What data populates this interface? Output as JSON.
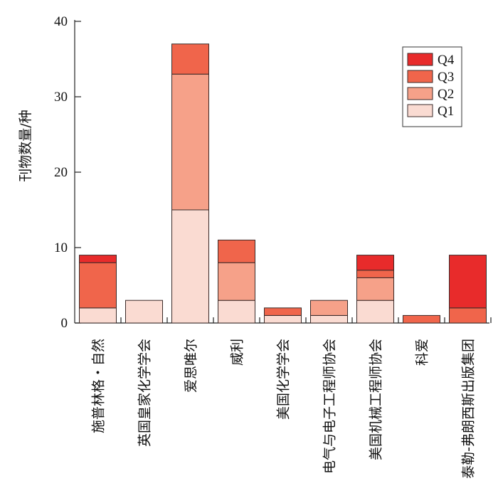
{
  "chart_data": {
    "type": "bar",
    "stacked": true,
    "ylabel": "刊物数量/种",
    "xlabel": "",
    "ylim": [
      0,
      40
    ],
    "yticks": [
      0,
      10,
      20,
      30,
      40
    ],
    "legend_position": "top-right",
    "categories": [
      "施普林格・自然",
      "英国皇家化学学会",
      "爱思唯尔",
      "威利",
      "美国化学学会",
      "电气与电子工程师协会",
      "美国机械工程师协会",
      "科爱",
      "泰勒-弗朗西斯出版集团"
    ],
    "series": [
      {
        "name": "Q1",
        "color": "#fadbd2",
        "values": [
          2,
          3,
          15,
          3,
          1,
          1,
          3,
          0,
          0
        ]
      },
      {
        "name": "Q2",
        "color": "#f6a189",
        "values": [
          0,
          0,
          18,
          5,
          0,
          2,
          3,
          0,
          0
        ]
      },
      {
        "name": "Q3",
        "color": "#f0654b",
        "values": [
          6,
          0,
          4,
          3,
          1,
          0,
          1,
          1,
          2
        ]
      },
      {
        "name": "Q4",
        "color": "#e82b2b",
        "values": [
          1,
          0,
          0,
          0,
          0,
          0,
          2,
          0,
          7
        ]
      }
    ]
  }
}
